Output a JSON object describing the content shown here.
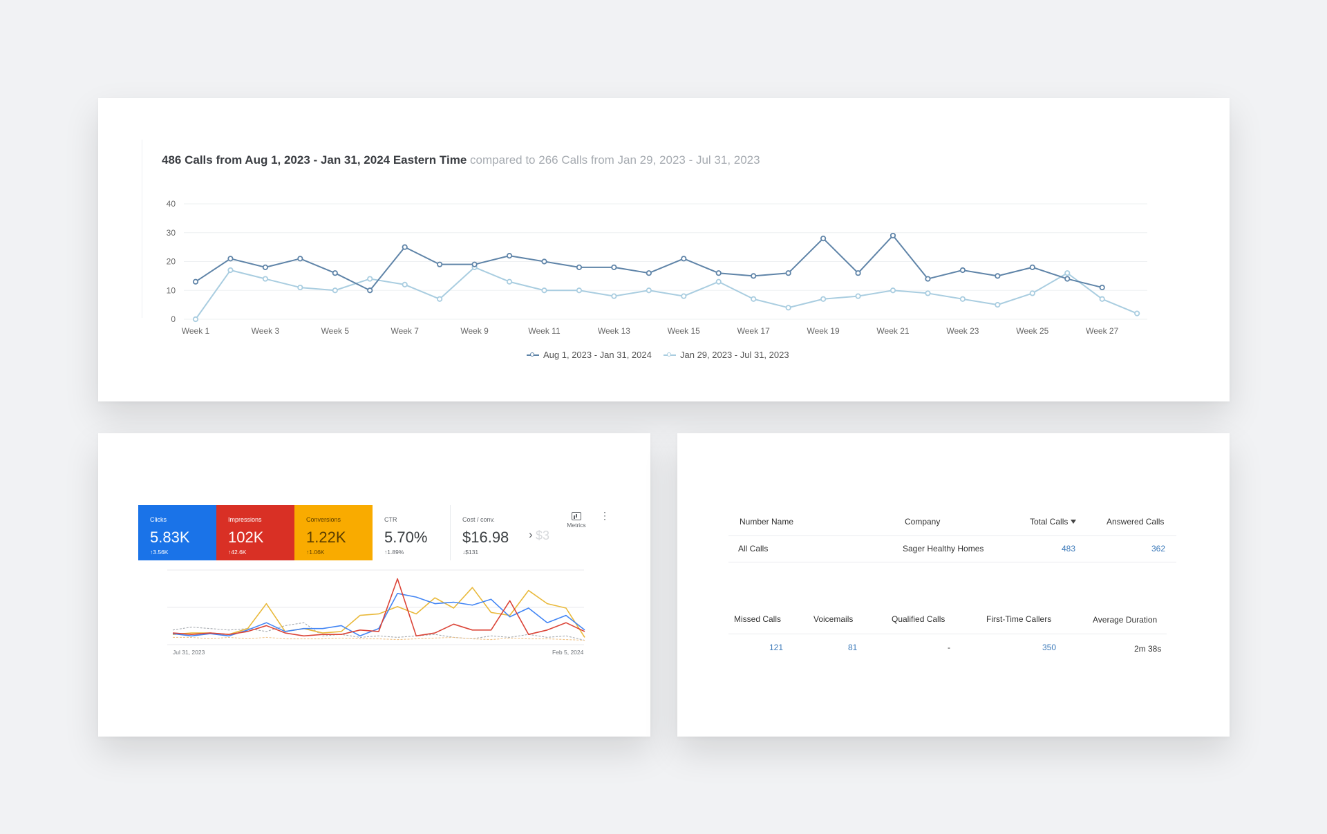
{
  "calls_chart": {
    "title_main": "486 Calls from Aug 1, 2023 - Jan 31, 2024 Eastern Time",
    "title_compare": "compared to 266 Calls from Jan 29, 2023 - Jul 31, 2023",
    "y_ticks": [
      "40",
      "30",
      "20",
      "10",
      "0"
    ],
    "x_tick_labels": [
      "Week 1",
      "Week 3",
      "Week 5",
      "Week 7",
      "Week 9",
      "Week 11",
      "Week 13",
      "Week 15",
      "Week 17",
      "Week 19",
      "Week 21",
      "Week 23",
      "Week 25",
      "Week 27"
    ],
    "legend": [
      "Aug 1, 2023 - Jan 31, 2024",
      "Jan 29, 2023 - Jul 31, 2023"
    ]
  },
  "chart_data": [
    {
      "type": "line",
      "title": "486 Calls from Aug 1, 2023 - Jan 31, 2024 Eastern Time",
      "x": [
        "Week 1",
        "Week 2",
        "Week 3",
        "Week 4",
        "Week 5",
        "Week 6",
        "Week 7",
        "Week 8",
        "Week 9",
        "Week 10",
        "Week 11",
        "Week 12",
        "Week 13",
        "Week 14",
        "Week 15",
        "Week 16",
        "Week 17",
        "Week 18",
        "Week 19",
        "Week 20",
        "Week 21",
        "Week 22",
        "Week 23",
        "Week 24",
        "Week 25",
        "Week 26",
        "Week 27",
        "Week 28"
      ],
      "ylim": [
        0,
        40
      ],
      "grid": true,
      "legend_position": "bottom",
      "series": [
        {
          "name": "Aug 1, 2023 - Jan 31, 2024",
          "color": "#5f84a8",
          "values": [
            13,
            21,
            18,
            21,
            16,
            10,
            25,
            19,
            19,
            22,
            20,
            18,
            18,
            16,
            21,
            16,
            15,
            16,
            28,
            16,
            29,
            14,
            17,
            15,
            18,
            14,
            11,
            null
          ]
        },
        {
          "name": "Jan 29, 2023 - Jul 31, 2023",
          "color": "#a9cde0",
          "values": [
            0,
            17,
            14,
            11,
            10,
            14,
            12,
            7,
            18,
            13,
            10,
            10,
            8,
            10,
            8,
            13,
            7,
            4,
            7,
            8,
            10,
            9,
            7,
            5,
            9,
            16,
            7,
            2
          ]
        }
      ]
    },
    {
      "type": "line",
      "xlabel": "",
      "x_start_label": "Jul 31, 2023",
      "x_end_label": "Feb 5, 2024",
      "series": [
        {
          "color": "#4285f4",
          "values": [
            0.85,
            0.88,
            0.85,
            0.88,
            0.8,
            0.7,
            0.82,
            0.78,
            0.78,
            0.74,
            0.88,
            0.78,
            0.3,
            0.35,
            0.44,
            0.42,
            0.46,
            0.38,
            0.62,
            0.5,
            0.7,
            0.6,
            0.8
          ]
        },
        {
          "color": "#db4437",
          "values": [
            0.84,
            0.86,
            0.84,
            0.86,
            0.82,
            0.74,
            0.84,
            0.88,
            0.86,
            0.86,
            0.8,
            0.82,
            0.1,
            0.88,
            0.84,
            0.72,
            0.8,
            0.8,
            0.4,
            0.86,
            0.8,
            0.7,
            0.82
          ]
        },
        {
          "color": "#e9b93b",
          "values": [
            0.86,
            0.84,
            0.84,
            0.86,
            0.78,
            0.44,
            0.82,
            0.78,
            0.84,
            0.82,
            0.6,
            0.58,
            0.48,
            0.58,
            0.36,
            0.5,
            0.22,
            0.56,
            0.6,
            0.26,
            0.44,
            0.5,
            0.9
          ]
        },
        {
          "color": "#a6aaaf",
          "values": [
            0.8,
            0.76,
            0.78,
            0.8,
            0.78,
            0.82,
            0.74,
            0.7,
            0.88,
            0.86,
            0.9,
            0.88,
            0.9,
            0.88,
            0.86,
            0.9,
            0.92,
            0.88,
            0.9,
            0.86,
            0.9,
            0.88,
            0.94
          ]
        },
        {
          "color": "#f0c48a",
          "values": [
            0.9,
            0.9,
            0.92,
            0.9,
            0.92,
            0.9,
            0.92,
            0.92,
            0.92,
            0.91,
            0.92,
            0.92,
            0.93,
            0.92,
            0.91,
            0.9,
            0.92,
            0.93,
            0.91,
            0.92,
            0.92,
            0.93,
            0.94
          ]
        }
      ]
    }
  ],
  "ads_card": {
    "tiles": [
      {
        "label": "Clicks",
        "value": "5.83K",
        "delta": "↑3.56K",
        "color": "#1a73e8"
      },
      {
        "label": "Impressions",
        "value": "102K",
        "delta": "↑42.6K",
        "color": "#d93025"
      },
      {
        "label": "Conversions",
        "value": "1.22K",
        "delta": "↑1.06K",
        "color": "#f9ab00"
      },
      {
        "label": "CTR",
        "value": "5.70%",
        "delta": "↑1.89%"
      },
      {
        "label": "Cost / conv.",
        "value": "$16.98",
        "delta": "↓$131"
      }
    ],
    "more_chevron": "›",
    "more_value": "$3",
    "metrics_label": "Metrics",
    "kebab": "⋮",
    "date_start": "Jul 31, 2023",
    "date_end": "Feb 5, 2024"
  },
  "calls_table": {
    "headers": {
      "number_name": "Number Name",
      "company": "Company",
      "total_calls": "Total Calls",
      "answered_calls": "Answered Calls"
    },
    "row": {
      "number_name": "All Calls",
      "company": "Sager Healthy Homes",
      "total_calls": "483",
      "answered_calls": "362"
    },
    "headers2": {
      "missed_calls": "Missed Calls",
      "voicemails": "Voicemails",
      "qualified_calls": "Qualified Calls",
      "first_time_callers": "First-Time Callers",
      "average_duration": "Average Duration"
    },
    "row2": {
      "missed_calls": "121",
      "voicemails": "81",
      "qualified_calls": "-",
      "first_time_callers": "350",
      "average_duration": "2m 38s"
    }
  }
}
